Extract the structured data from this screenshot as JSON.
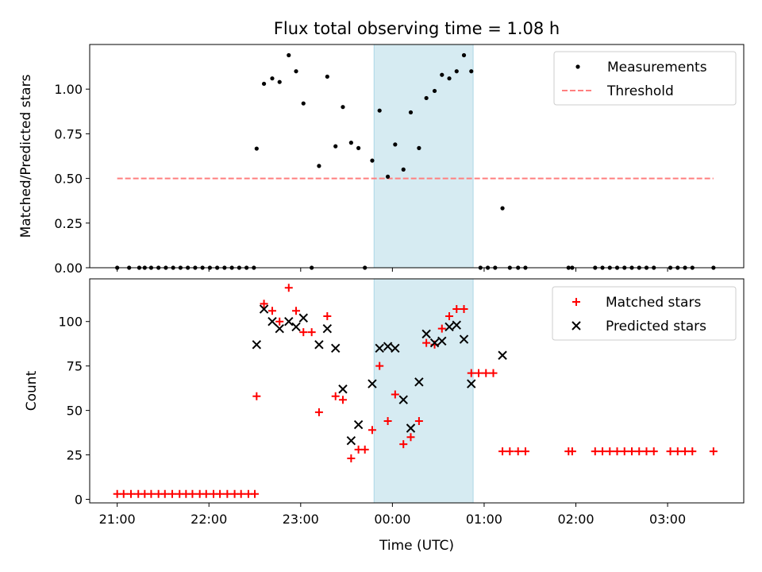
{
  "title": "Flux total observing time = 1.08 h",
  "xlabel": "Time (UTC)",
  "x_ticks": [
    "21:00",
    "22:00",
    "23:00",
    "00:00",
    "01:00",
    "02:00",
    "03:00"
  ],
  "colors": {
    "measurement": "#000000",
    "threshold": "#ff7f7f",
    "matched": "#ff0000",
    "predicted": "#000000",
    "window_fill": "#add8e6"
  },
  "chart_data": [
    {
      "type": "scatter",
      "ylabel": "Matched/Predicted stars",
      "xlim": [
        -0.3,
        6.83
      ],
      "ylim": [
        0,
        1.25
      ],
      "y_ticks": [
        "0.00",
        "0.25",
        "0.50",
        "0.75",
        "1.00"
      ],
      "y_tick_values": [
        0,
        0.25,
        0.5,
        0.75,
        1.0
      ],
      "x_axis_unit": "hours after 21:00 UTC",
      "shaded_window": [
        2.8,
        3.88
      ],
      "legend": {
        "position": "top-right",
        "entries": [
          "Measurements",
          "Threshold"
        ]
      },
      "threshold": {
        "name": "Threshold",
        "value": 0.5,
        "x_range": [
          0,
          6.5
        ]
      },
      "series": [
        {
          "name": "Measurements",
          "marker": "dot",
          "points": [
            [
              0.0,
              0.0
            ],
            [
              0.13,
              0.0
            ],
            [
              0.24,
              0.0
            ],
            [
              0.3,
              0.0
            ],
            [
              0.37,
              0.0
            ],
            [
              0.45,
              0.0
            ],
            [
              0.53,
              0.0
            ],
            [
              0.61,
              0.0
            ],
            [
              0.69,
              0.0
            ],
            [
              0.77,
              0.0
            ],
            [
              0.85,
              0.0
            ],
            [
              0.93,
              0.0
            ],
            [
              1.01,
              0.0
            ],
            [
              1.09,
              0.0
            ],
            [
              1.17,
              0.0
            ],
            [
              1.25,
              0.0
            ],
            [
              1.33,
              0.0
            ],
            [
              1.41,
              0.0
            ],
            [
              1.49,
              0.0
            ],
            [
              1.52,
              0.667
            ],
            [
              1.6,
              1.03
            ],
            [
              1.69,
              1.06
            ],
            [
              1.77,
              1.04
            ],
            [
              1.87,
              1.19
            ],
            [
              1.95,
              1.1
            ],
            [
              2.03,
              0.92
            ],
            [
              2.12,
              0.0
            ],
            [
              2.2,
              0.57
            ],
            [
              2.29,
              1.07
            ],
            [
              2.38,
              0.68
            ],
            [
              2.46,
              0.9
            ],
            [
              2.55,
              0.7
            ],
            [
              2.63,
              0.67
            ],
            [
              2.7,
              0.0
            ],
            [
              2.78,
              0.6
            ],
            [
              2.86,
              0.88
            ],
            [
              2.95,
              0.51
            ],
            [
              3.03,
              0.69
            ],
            [
              3.12,
              0.55
            ],
            [
              3.2,
              0.87
            ],
            [
              3.29,
              0.67
            ],
            [
              3.37,
              0.95
            ],
            [
              3.46,
              0.99
            ],
            [
              3.54,
              1.08
            ],
            [
              3.62,
              1.06
            ],
            [
              3.7,
              1.1
            ],
            [
              3.78,
              1.19
            ],
            [
              3.86,
              1.1
            ],
            [
              3.96,
              0.0
            ],
            [
              4.04,
              0.0
            ],
            [
              4.12,
              0.0
            ],
            [
              4.2,
              0.333
            ],
            [
              4.28,
              0.0
            ],
            [
              4.37,
              0.0
            ],
            [
              4.45,
              0.0
            ],
            [
              4.92,
              0.0
            ],
            [
              4.96,
              0.0
            ],
            [
              5.21,
              0.0
            ],
            [
              5.29,
              0.0
            ],
            [
              5.37,
              0.0
            ],
            [
              5.45,
              0.0
            ],
            [
              5.53,
              0.0
            ],
            [
              5.61,
              0.0
            ],
            [
              5.69,
              0.0
            ],
            [
              5.77,
              0.0
            ],
            [
              5.85,
              0.0
            ],
            [
              6.03,
              0.0
            ],
            [
              6.11,
              0.0
            ],
            [
              6.19,
              0.0
            ],
            [
              6.27,
              0.0
            ],
            [
              6.5,
              0.0
            ]
          ]
        }
      ]
    },
    {
      "type": "scatter",
      "ylabel": "Count",
      "xlim": [
        -0.3,
        6.83
      ],
      "ylim": [
        -2,
        124
      ],
      "y_ticks": [
        "0",
        "25",
        "50",
        "75",
        "100"
      ],
      "y_tick_values": [
        0,
        25,
        50,
        75,
        100
      ],
      "x_axis_unit": "hours after 21:00 UTC",
      "shaded_window": [
        2.8,
        3.88
      ],
      "legend": {
        "position": "top-right",
        "entries": [
          "Matched stars",
          "Predicted stars"
        ]
      },
      "series": [
        {
          "name": "Matched stars",
          "marker": "plus",
          "points": [
            [
              0.0,
              3
            ],
            [
              0.07,
              3
            ],
            [
              0.15,
              3
            ],
            [
              0.23,
              3
            ],
            [
              0.3,
              3
            ],
            [
              0.37,
              3
            ],
            [
              0.45,
              3
            ],
            [
              0.52,
              3
            ],
            [
              0.6,
              3
            ],
            [
              0.68,
              3
            ],
            [
              0.75,
              3
            ],
            [
              0.82,
              3
            ],
            [
              0.9,
              3
            ],
            [
              0.97,
              3
            ],
            [
              1.05,
              3
            ],
            [
              1.12,
              3
            ],
            [
              1.2,
              3
            ],
            [
              1.28,
              3
            ],
            [
              1.35,
              3
            ],
            [
              1.43,
              3
            ],
            [
              1.5,
              3
            ],
            [
              1.52,
              58
            ],
            [
              1.6,
              110
            ],
            [
              1.69,
              106
            ],
            [
              1.77,
              100
            ],
            [
              1.87,
              119
            ],
            [
              1.95,
              106
            ],
            [
              2.03,
              94
            ],
            [
              2.12,
              94
            ],
            [
              2.2,
              49
            ],
            [
              2.29,
              103
            ],
            [
              2.38,
              58
            ],
            [
              2.46,
              56
            ],
            [
              2.55,
              23
            ],
            [
              2.63,
              28
            ],
            [
              2.7,
              28
            ],
            [
              2.78,
              39
            ],
            [
              2.86,
              75
            ],
            [
              2.95,
              44
            ],
            [
              3.03,
              59
            ],
            [
              3.12,
              31
            ],
            [
              3.2,
              35
            ],
            [
              3.29,
              44
            ],
            [
              3.37,
              88
            ],
            [
              3.46,
              87
            ],
            [
              3.54,
              96
            ],
            [
              3.62,
              103
            ],
            [
              3.7,
              107
            ],
            [
              3.78,
              107
            ],
            [
              3.86,
              71
            ],
            [
              3.94,
              71
            ],
            [
              4.02,
              71
            ],
            [
              4.1,
              71
            ],
            [
              4.2,
              27
            ],
            [
              4.28,
              27
            ],
            [
              4.37,
              27
            ],
            [
              4.45,
              27
            ],
            [
              4.92,
              27
            ],
            [
              4.96,
              27
            ],
            [
              5.21,
              27
            ],
            [
              5.29,
              27
            ],
            [
              5.37,
              27
            ],
            [
              5.45,
              27
            ],
            [
              5.53,
              27
            ],
            [
              5.61,
              27
            ],
            [
              5.69,
              27
            ],
            [
              5.77,
              27
            ],
            [
              5.85,
              27
            ],
            [
              6.03,
              27
            ],
            [
              6.11,
              27
            ],
            [
              6.19,
              27
            ],
            [
              6.27,
              27
            ],
            [
              6.5,
              27
            ]
          ]
        },
        {
          "name": "Predicted stars",
          "marker": "x",
          "points": [
            [
              1.52,
              87
            ],
            [
              1.6,
              107
            ],
            [
              1.69,
              100
            ],
            [
              1.77,
              96
            ],
            [
              1.87,
              100
            ],
            [
              1.95,
              97
            ],
            [
              2.03,
              102
            ],
            [
              2.2,
              87
            ],
            [
              2.29,
              96
            ],
            [
              2.38,
              85
            ],
            [
              2.46,
              62
            ],
            [
              2.55,
              33
            ],
            [
              2.63,
              42
            ],
            [
              2.78,
              65
            ],
            [
              2.86,
              85
            ],
            [
              2.95,
              86
            ],
            [
              3.03,
              85
            ],
            [
              3.12,
              56
            ],
            [
              3.2,
              40
            ],
            [
              3.29,
              66
            ],
            [
              3.37,
              93
            ],
            [
              3.46,
              88
            ],
            [
              3.54,
              89
            ],
            [
              3.62,
              97
            ],
            [
              3.7,
              98
            ],
            [
              3.78,
              90
            ],
            [
              3.86,
              65
            ],
            [
              4.2,
              81
            ]
          ]
        }
      ]
    }
  ]
}
